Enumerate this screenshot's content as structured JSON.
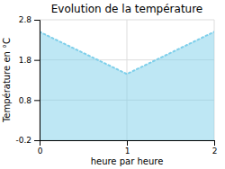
{
  "chart_data": {
    "type": "area",
    "title": "Evolution de la température",
    "xlabel": "heure par heure",
    "ylabel": "Température en °C",
    "x": [
      0,
      1,
      2
    ],
    "values": [
      2.5,
      1.45,
      2.5
    ],
    "color": "#7ecfea",
    "line_style": "dotted",
    "xlim": [
      0,
      2
    ],
    "ylim": [
      -0.2,
      2.8
    ],
    "xticks": [
      0,
      1,
      2
    ],
    "yticks": [
      -0.2,
      0.8,
      1.8,
      2.8
    ],
    "grid": true
  }
}
